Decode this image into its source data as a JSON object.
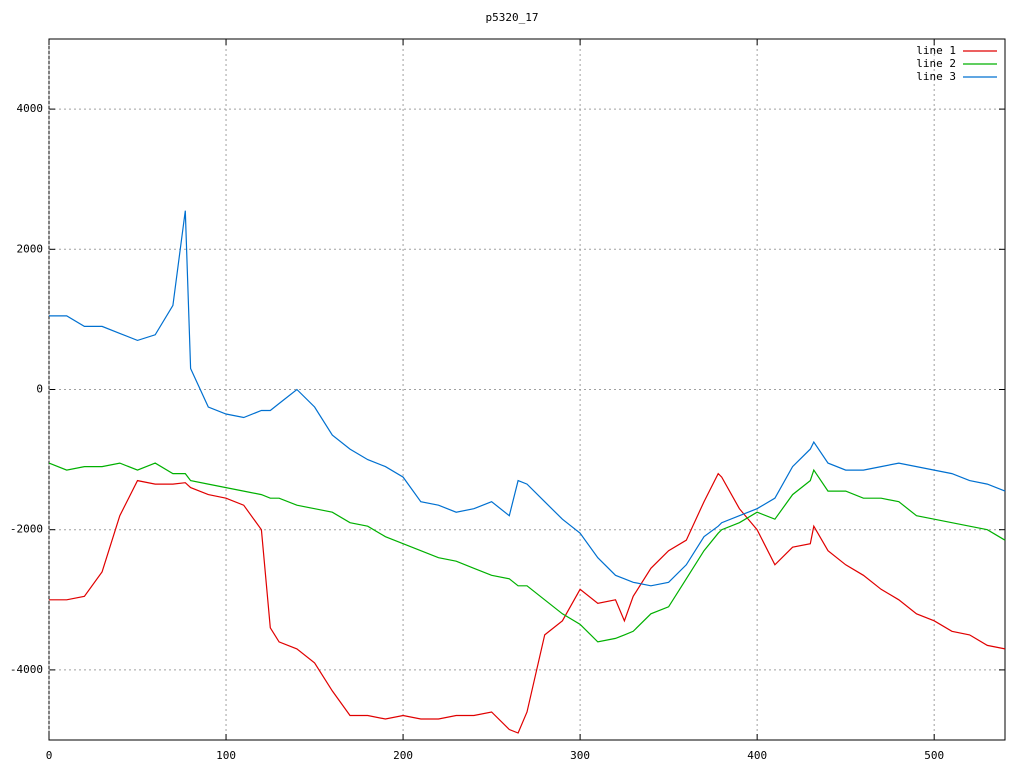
{
  "chart_data": {
    "type": "line",
    "title": "p5320_17",
    "x": [
      0,
      10,
      20,
      30,
      40,
      50,
      60,
      70,
      77,
      80,
      90,
      100,
      110,
      120,
      125,
      130,
      140,
      150,
      160,
      170,
      180,
      190,
      200,
      210,
      220,
      230,
      240,
      250,
      260,
      265,
      270,
      280,
      290,
      300,
      310,
      320,
      325,
      330,
      340,
      350,
      360,
      370,
      378,
      380,
      390,
      400,
      410,
      420,
      430,
      432,
      440,
      450,
      460,
      470,
      480,
      490,
      500,
      510,
      520,
      530,
      540
    ],
    "series": [
      {
        "name": "line 1",
        "color": "#e00000",
        "values": [
          -3000,
          -3000,
          -2950,
          -2600,
          -1800,
          -1300,
          -1350,
          -1350,
          -1330,
          -1400,
          -1500,
          -1550,
          -1650,
          -2000,
          -3400,
          -3600,
          -3700,
          -3900,
          -4300,
          -4650,
          -4650,
          -4700,
          -4650,
          -4700,
          -4700,
          -4650,
          -4650,
          -4600,
          -4850,
          -4900,
          -4600,
          -3500,
          -3300,
          -2850,
          -3050,
          -3000,
          -3300,
          -2950,
          -2550,
          -2300,
          -2150,
          -1600,
          -1200,
          -1250,
          -1700,
          -2000,
          -2500,
          -2250,
          -2200,
          -1950,
          -2300,
          -2500,
          -2650,
          -2850,
          -3000,
          -3200,
          -3300,
          -3450,
          -3500,
          -3650,
          -3700
        ]
      },
      {
        "name": "line 2",
        "color": "#00b000",
        "values": [
          -1050,
          -1150,
          -1100,
          -1100,
          -1050,
          -1150,
          -1050,
          -1200,
          -1200,
          -1300,
          -1350,
          -1400,
          -1450,
          -1500,
          -1550,
          -1550,
          -1650,
          -1700,
          -1750,
          -1900,
          -1950,
          -2100,
          -2200,
          -2300,
          -2400,
          -2450,
          -2550,
          -2650,
          -2700,
          -2800,
          -2800,
          -3000,
          -3200,
          -3350,
          -3600,
          -3550,
          -3500,
          -3450,
          -3200,
          -3100,
          -2700,
          -2300,
          -2050,
          -2000,
          -1900,
          -1750,
          -1850,
          -1500,
          -1300,
          -1150,
          -1450,
          -1450,
          -1550,
          -1550,
          -1600,
          -1800,
          -1850,
          -1900,
          -1950,
          -2000,
          -2150
        ]
      },
      {
        "name": "line 3",
        "color": "#0070d0",
        "values": [
          1050,
          1050,
          900,
          900,
          800,
          700,
          780,
          1200,
          2550,
          300,
          -250,
          -350,
          -400,
          -300,
          -300,
          -200,
          0,
          -250,
          -650,
          -850,
          -1000,
          -1100,
          -1250,
          -1600,
          -1650,
          -1750,
          -1700,
          -1600,
          -1800,
          -1300,
          -1350,
          -1600,
          -1850,
          -2050,
          -2400,
          -2650,
          -2700,
          -2750,
          -2800,
          -2750,
          -2500,
          -2100,
          -1950,
          -1900,
          -1800,
          -1700,
          -1550,
          -1100,
          -850,
          -750,
          -1050,
          -1150,
          -1150,
          -1100,
          -1050,
          -1100,
          -1150,
          -1200,
          -1300,
          -1350,
          -1450
        ]
      }
    ],
    "xlim": [
      0,
      540
    ],
    "xticks": [
      0,
      100,
      200,
      300,
      400,
      500
    ],
    "ylim": [
      -5000,
      5000
    ],
    "yticks": [
      -4000,
      -2000,
      0,
      2000,
      4000
    ],
    "grid": true,
    "legend": "top-right"
  }
}
